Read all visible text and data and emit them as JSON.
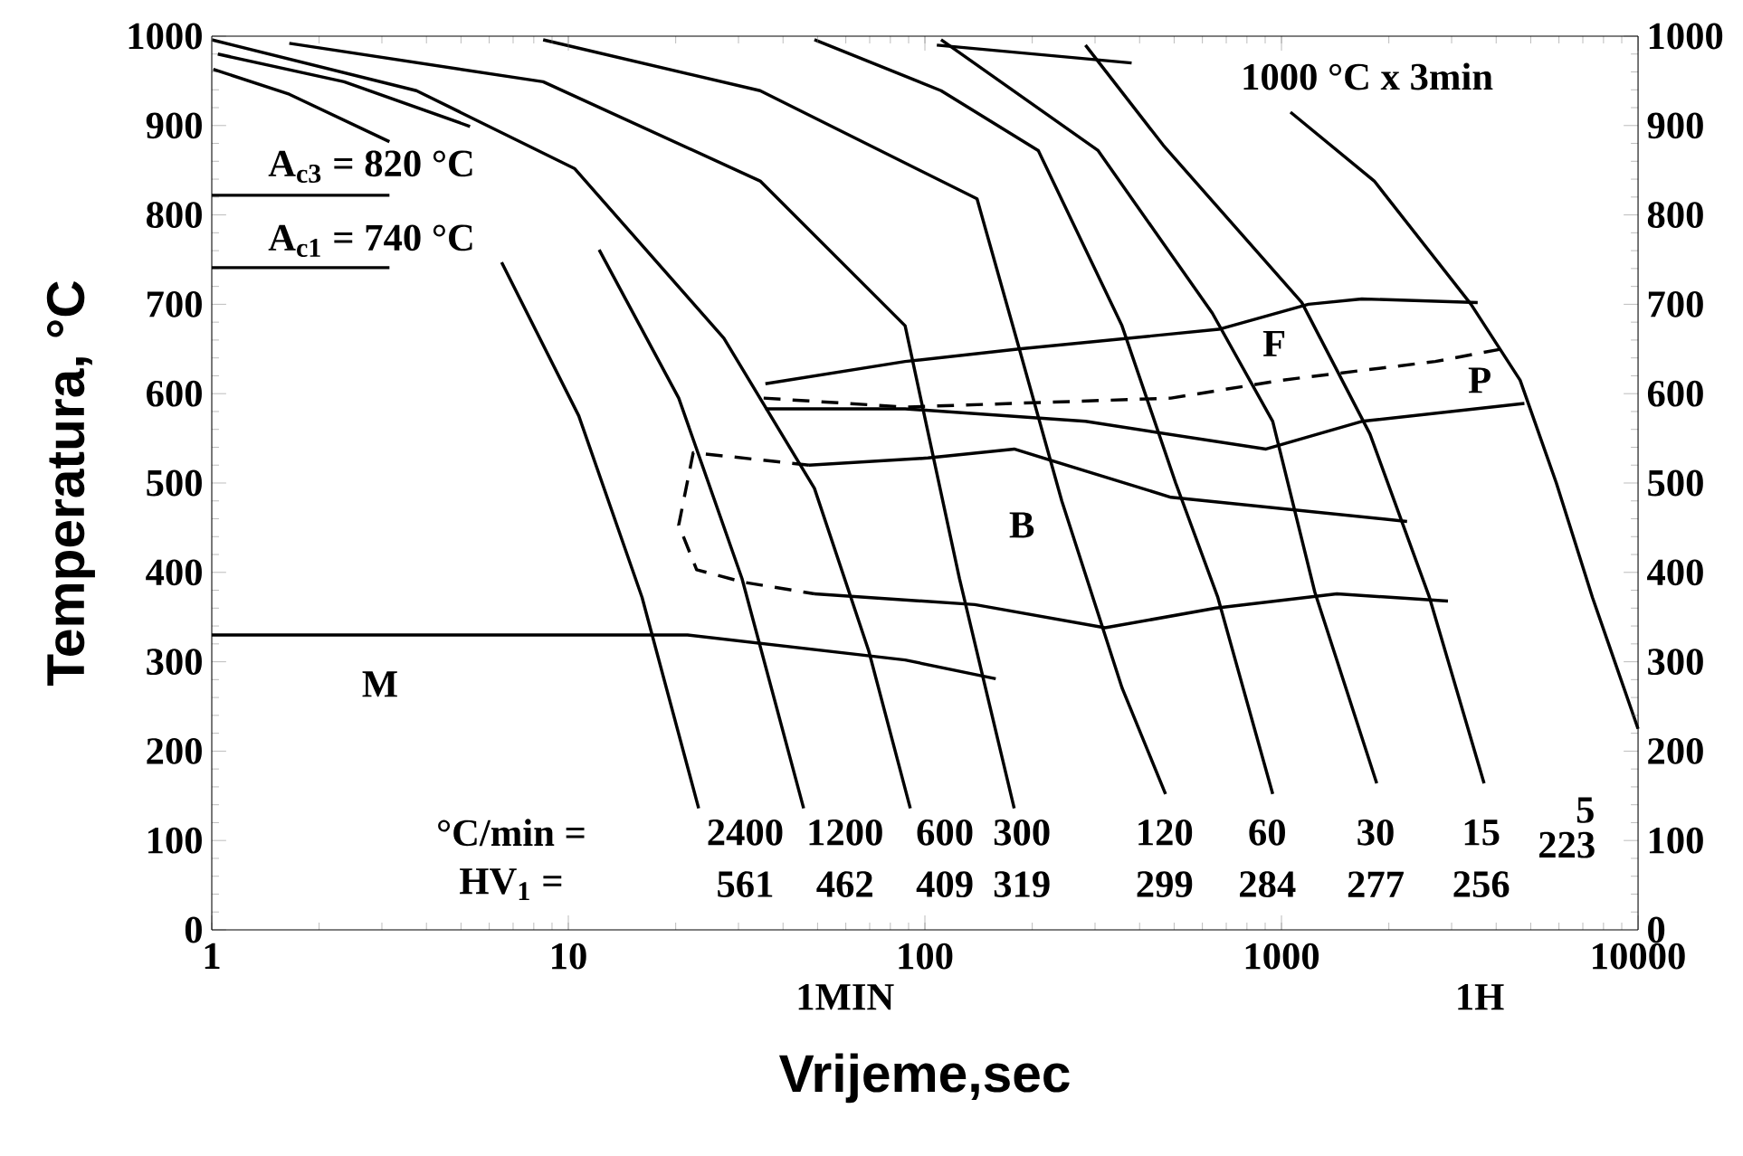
{
  "chart_data": {
    "type": "line",
    "xlabel": "Vrijeme,sec",
    "ylabel": "Temperatura, °C",
    "log": "x",
    "marker": "none",
    "line_style": "solid",
    "xlim": [
      1,
      10000
    ],
    "ylim": [
      0,
      1000
    ],
    "y2lim": [
      0,
      1000
    ],
    "xticks": [
      1,
      10,
      100,
      1000,
      10000
    ],
    "yticks": [
      0,
      100,
      200,
      300,
      400,
      500,
      600,
      700,
      800,
      900,
      1000
    ],
    "y2ticks": [
      0,
      100,
      200,
      300,
      400,
      500,
      600,
      700,
      800,
      900,
      1000
    ],
    "series": [
      {
        "color": "#000000",
        "x": [
          1.01,
          1.65,
          3.15,
          4.5,
          6.5,
          10.7,
          16.1,
          23.2
        ],
        "values": [
          963,
          935,
          882,
          null,
          747,
          575,
          372,
          136
        ]
      },
      {
        "color": "#000000",
        "x": [
          1.04,
          2.35,
          5.3,
          8,
          12.2,
          20.4,
          30.7,
          45.7
        ],
        "values": [
          980,
          949,
          899,
          null,
          761,
          595,
          393,
          136
        ]
      },
      {
        "color": "#000000",
        "x": [
          1,
          3.75,
          10.4,
          27.3,
          49,
          69.6,
          91
        ],
        "values": [
          996,
          939,
          852,
          662,
          494,
          312,
          136
        ]
      },
      {
        "color": "#000000",
        "x": [
          1.65,
          8.5,
          34.5,
          88,
          125,
          178
        ],
        "values": [
          992,
          949,
          838,
          676,
          393,
          136
        ]
      },
      {
        "color": "#000000",
        "x": [
          8.5,
          34.5,
          140,
          184,
          242,
          357,
          473
        ],
        "values": [
          996,
          939,
          818,
          650,
          480,
          271,
          152
        ]
      },
      {
        "color": "#000000",
        "x": [
          49,
          111,
          208,
          357,
          505,
          663,
          945
        ],
        "values": [
          996,
          939,
          872,
          676,
          500,
          372,
          152
        ]
      },
      {
        "color": "#000000",
        "x": [
          111,
          306,
          640,
          945,
          1240,
          1850
        ],
        "values": [
          996,
          872,
          690,
          569,
          378,
          164
        ]
      },
      {
        "color": "#000000",
        "x": [
          282,
          466,
          1140,
          1770,
          2600,
          3700
        ],
        "values": [
          990,
          878,
          702,
          555,
          372,
          164
        ]
      },
      {
        "color": "#000000",
        "x": [
          1060,
          1820,
          3400,
          4670,
          5900,
          7450,
          10000
        ],
        "values": [
          915,
          838,
          700,
          615,
          500,
          372,
          225
        ]
      },
      {
        "color": "#000000",
        "x": [
          108,
          380
        ],
        "values": [
          990,
          970
        ]
      },
      {
        "color": "#000000",
        "x": [
          1,
          3.15
        ],
        "values": [
          822,
          822
        ]
      },
      {
        "color": "#000000",
        "x": [
          1,
          3.15
        ],
        "values": [
          741,
          741
        ]
      },
      {
        "color": "#000000",
        "x": [
          35.7,
          88,
          184,
          667,
          1190,
          1680,
          3550
        ],
        "values": [
          611,
          636,
          650,
          672,
          700,
          706,
          702
        ]
      },
      {
        "color": "#000000",
        "line_style": "dashed",
        "x": [
          35.3,
          88,
          490,
          1000,
          2700,
          4150
        ],
        "values": [
          595,
          585,
          595,
          615,
          636,
          650
        ]
      },
      {
        "color": "#000000",
        "x": [
          35.7,
          88,
          282,
          905,
          1680,
          4800
        ],
        "values": [
          583,
          583,
          569,
          538,
          569,
          589
        ]
      },
      {
        "color": "#000000",
        "line_style": "dashed",
        "x": [
          47.3,
          22.4,
          20.4,
          22.9,
          31,
          49
        ],
        "values": [
          520,
          534,
          453,
          403,
          389,
          376
        ]
      },
      {
        "color": "#000000",
        "x": [
          47.3,
          102,
          178,
          490,
          2250
        ],
        "values": [
          520,
          528,
          538,
          484,
          457
        ]
      },
      {
        "color": "#000000",
        "x": [
          49,
          138,
          320,
          655,
          1430,
          2930
        ],
        "values": [
          376,
          364,
          338,
          360,
          376,
          368
        ]
      },
      {
        "color": "#000000",
        "x": [
          1,
          21.6,
          88,
          158
        ],
        "values": [
          330,
          330,
          302,
          281
        ]
      }
    ],
    "annotations": [
      "A$_{c3}$ = 820 °C",
      "A$_{c1}$ = 740 °C",
      "1000 °C x 3min",
      "F",
      "P",
      "B",
      "M",
      "°C/min =",
      "2400",
      "1200",
      "600",
      "300",
      "120",
      "60",
      "30",
      "15",
      "5",
      "HV$_{1}$ =",
      "561",
      "462",
      "409",
      "319",
      "299",
      "284",
      "277",
      "256",
      "223",
      "1MIN",
      "1H"
    ]
  }
}
